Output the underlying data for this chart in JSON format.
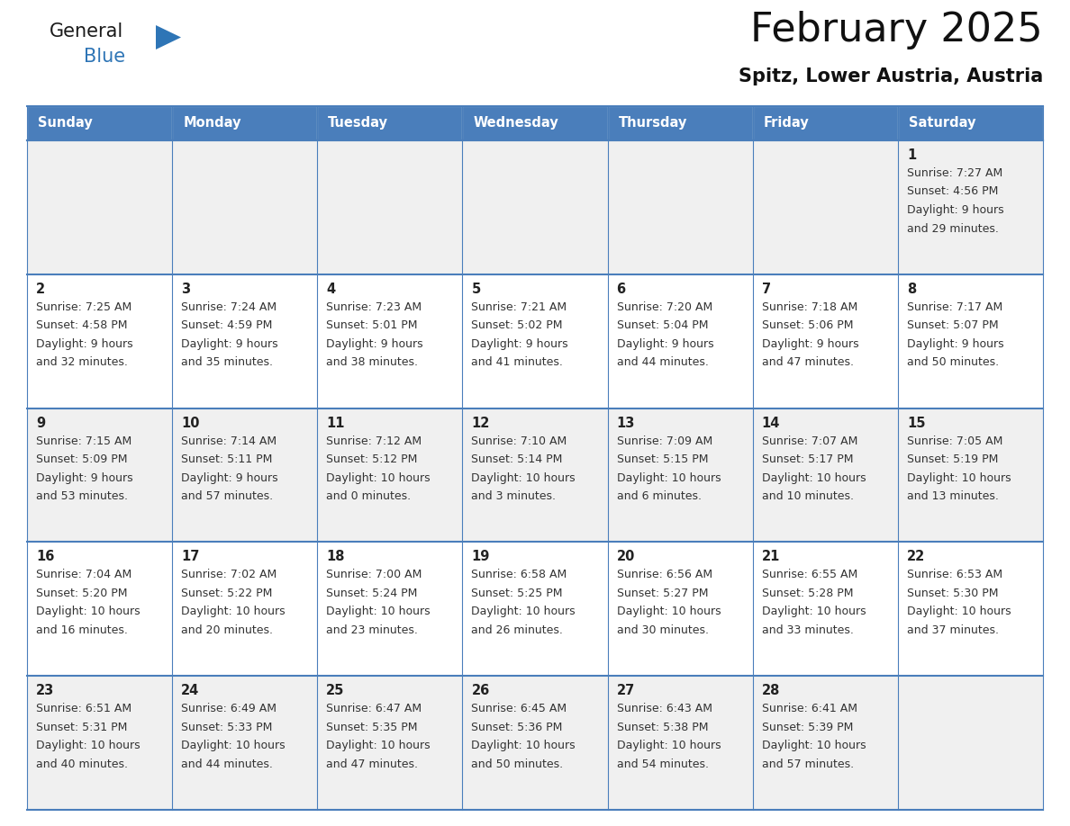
{
  "title": "February 2025",
  "subtitle": "Spitz, Lower Austria, Austria",
  "days_of_week": [
    "Sunday",
    "Monday",
    "Tuesday",
    "Wednesday",
    "Thursday",
    "Friday",
    "Saturday"
  ],
  "header_bg": "#4A7EBB",
  "header_text": "#FFFFFF",
  "cell_bg_odd": "#F0F0F0",
  "cell_bg_even": "#FFFFFF",
  "border_color": "#4A7EBB",
  "day_number_color": "#222222",
  "text_color": "#333333",
  "logo_general_color": "#1a1a1a",
  "logo_blue_color": "#2E75B6",
  "weeks": [
    [
      null,
      null,
      null,
      null,
      null,
      null,
      1
    ],
    [
      2,
      3,
      4,
      5,
      6,
      7,
      8
    ],
    [
      9,
      10,
      11,
      12,
      13,
      14,
      15
    ],
    [
      16,
      17,
      18,
      19,
      20,
      21,
      22
    ],
    [
      23,
      24,
      25,
      26,
      27,
      28,
      null
    ]
  ],
  "sun_data": {
    "1": {
      "rise": "7:27 AM",
      "set": "4:56 PM",
      "hours": "9 hours",
      "mins": "and 29 minutes."
    },
    "2": {
      "rise": "7:25 AM",
      "set": "4:58 PM",
      "hours": "9 hours",
      "mins": "and 32 minutes."
    },
    "3": {
      "rise": "7:24 AM",
      "set": "4:59 PM",
      "hours": "9 hours",
      "mins": "and 35 minutes."
    },
    "4": {
      "rise": "7:23 AM",
      "set": "5:01 PM",
      "hours": "9 hours",
      "mins": "and 38 minutes."
    },
    "5": {
      "rise": "7:21 AM",
      "set": "5:02 PM",
      "hours": "9 hours",
      "mins": "and 41 minutes."
    },
    "6": {
      "rise": "7:20 AM",
      "set": "5:04 PM",
      "hours": "9 hours",
      "mins": "and 44 minutes."
    },
    "7": {
      "rise": "7:18 AM",
      "set": "5:06 PM",
      "hours": "9 hours",
      "mins": "and 47 minutes."
    },
    "8": {
      "rise": "7:17 AM",
      "set": "5:07 PM",
      "hours": "9 hours",
      "mins": "and 50 minutes."
    },
    "9": {
      "rise": "7:15 AM",
      "set": "5:09 PM",
      "hours": "9 hours",
      "mins": "and 53 minutes."
    },
    "10": {
      "rise": "7:14 AM",
      "set": "5:11 PM",
      "hours": "9 hours",
      "mins": "and 57 minutes."
    },
    "11": {
      "rise": "7:12 AM",
      "set": "5:12 PM",
      "hours": "10 hours",
      "mins": "and 0 minutes."
    },
    "12": {
      "rise": "7:10 AM",
      "set": "5:14 PM",
      "hours": "10 hours",
      "mins": "and 3 minutes."
    },
    "13": {
      "rise": "7:09 AM",
      "set": "5:15 PM",
      "hours": "10 hours",
      "mins": "and 6 minutes."
    },
    "14": {
      "rise": "7:07 AM",
      "set": "5:17 PM",
      "hours": "10 hours",
      "mins": "and 10 minutes."
    },
    "15": {
      "rise": "7:05 AM",
      "set": "5:19 PM",
      "hours": "10 hours",
      "mins": "and 13 minutes."
    },
    "16": {
      "rise": "7:04 AM",
      "set": "5:20 PM",
      "hours": "10 hours",
      "mins": "and 16 minutes."
    },
    "17": {
      "rise": "7:02 AM",
      "set": "5:22 PM",
      "hours": "10 hours",
      "mins": "and 20 minutes."
    },
    "18": {
      "rise": "7:00 AM",
      "set": "5:24 PM",
      "hours": "10 hours",
      "mins": "and 23 minutes."
    },
    "19": {
      "rise": "6:58 AM",
      "set": "5:25 PM",
      "hours": "10 hours",
      "mins": "and 26 minutes."
    },
    "20": {
      "rise": "6:56 AM",
      "set": "5:27 PM",
      "hours": "10 hours",
      "mins": "and 30 minutes."
    },
    "21": {
      "rise": "6:55 AM",
      "set": "5:28 PM",
      "hours": "10 hours",
      "mins": "and 33 minutes."
    },
    "22": {
      "rise": "6:53 AM",
      "set": "5:30 PM",
      "hours": "10 hours",
      "mins": "and 37 minutes."
    },
    "23": {
      "rise": "6:51 AM",
      "set": "5:31 PM",
      "hours": "10 hours",
      "mins": "and 40 minutes."
    },
    "24": {
      "rise": "6:49 AM",
      "set": "5:33 PM",
      "hours": "10 hours",
      "mins": "and 44 minutes."
    },
    "25": {
      "rise": "6:47 AM",
      "set": "5:35 PM",
      "hours": "10 hours",
      "mins": "and 47 minutes."
    },
    "26": {
      "rise": "6:45 AM",
      "set": "5:36 PM",
      "hours": "10 hours",
      "mins": "and 50 minutes."
    },
    "27": {
      "rise": "6:43 AM",
      "set": "5:38 PM",
      "hours": "10 hours",
      "mins": "and 54 minutes."
    },
    "28": {
      "rise": "6:41 AM",
      "set": "5:39 PM",
      "hours": "10 hours",
      "mins": "and 57 minutes."
    }
  },
  "fig_width": 11.88,
  "fig_height": 9.18,
  "dpi": 100
}
